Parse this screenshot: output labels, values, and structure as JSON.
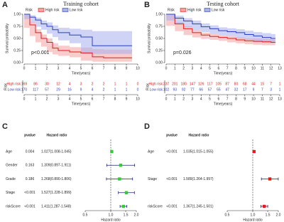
{
  "chart_data": [
    {
      "type": "survival",
      "panel": "A",
      "title": "Training cohort",
      "xlabel": "Time(years)",
      "ylabel": "Survival probability",
      "legend_title": "Risk",
      "annotation": "p<0.001",
      "risk_table_label": "Risk",
      "xlim": [
        0,
        10
      ],
      "xticks": [
        0,
        1,
        2,
        3,
        4,
        5,
        6,
        7,
        8,
        9,
        10
      ],
      "ylim": [
        0,
        1
      ],
      "yticks": [
        {
          "value": 0,
          "label": "0.00"
        },
        {
          "value": 0.25,
          "label": "0.25"
        },
        {
          "value": 0.5,
          "label": "0.50"
        },
        {
          "value": 0.75,
          "label": "0.75"
        },
        {
          "value": 1,
          "label": "1.00"
        }
      ],
      "x": [
        0,
        0.5,
        1,
        1.5,
        2,
        2.5,
        3,
        4,
        5,
        6,
        7,
        8,
        9,
        9.5
      ],
      "series": [
        {
          "name": "High risk",
          "color": "#e41a1c",
          "band_color": "#f4a0a0",
          "values": [
            1,
            0.78,
            0.62,
            0.5,
            0.42,
            0.3,
            0.25,
            0.22,
            0.2,
            0.12,
            0.1,
            0.1,
            0.1,
            0.1
          ],
          "lower": [
            1,
            0.72,
            0.55,
            0.42,
            0.33,
            0.22,
            0.17,
            0.14,
            0.11,
            0.04,
            0.02,
            0.02,
            0.02,
            0.02
          ],
          "upper": [
            1,
            0.84,
            0.69,
            0.58,
            0.5,
            0.4,
            0.35,
            0.32,
            0.31,
            0.28,
            0.27,
            0.27,
            0.27,
            0.27
          ],
          "at_risk": [
            169,
            86,
            30,
            12,
            4,
            3,
            2,
            2,
            1,
            1,
            0
          ]
        },
        {
          "name": "Low risk",
          "color": "#2b3fc4",
          "band_color": "#a8b0f0",
          "values": [
            1,
            0.94,
            0.88,
            0.8,
            0.75,
            0.68,
            0.62,
            0.57,
            0.53,
            0.35,
            0.35,
            0.35,
            0.35,
            0.35
          ],
          "lower": [
            1,
            0.9,
            0.83,
            0.74,
            0.68,
            0.6,
            0.53,
            0.46,
            0.4,
            0.18,
            0.18,
            0.18,
            0.18,
            0.18
          ],
          "upper": [
            1,
            0.98,
            0.93,
            0.87,
            0.83,
            0.77,
            0.72,
            0.7,
            0.68,
            0.65,
            0.65,
            0.65,
            0.65,
            0.65
          ],
          "at_risk": [
            170,
            117,
            57,
            29,
            16,
            9,
            4,
            2,
            1,
            1,
            0
          ]
        }
      ]
    },
    {
      "type": "survival",
      "panel": "B",
      "title": "Testing cohort",
      "xlabel": "Time(years)",
      "ylabel": "Survival probability",
      "legend_title": "Risk",
      "annotation": "p=0.026",
      "risk_table_label": "Risk",
      "xlim": [
        0,
        13
      ],
      "xticks": [
        0,
        1,
        2,
        3,
        4,
        5,
        6,
        7,
        8,
        9,
        10,
        11,
        12,
        13
      ],
      "ylim": [
        0,
        1
      ],
      "yticks": [
        {
          "value": 0,
          "label": "0.00"
        },
        {
          "value": 0.25,
          "label": "0.25"
        },
        {
          "value": 0.5,
          "label": "0.50"
        },
        {
          "value": 0.75,
          "label": "0.75"
        },
        {
          "value": 1,
          "label": "1.00"
        }
      ],
      "x": [
        0,
        1,
        2,
        3,
        4,
        5,
        6,
        7,
        8,
        9,
        10,
        11,
        12,
        12.5
      ],
      "series": [
        {
          "name": "High risk",
          "color": "#e41a1c",
          "band_color": "#f4a0a0",
          "values": [
            1,
            0.8,
            0.7,
            0.62,
            0.57,
            0.54,
            0.52,
            0.5,
            0.47,
            0.45,
            0.44,
            0.43,
            0.42,
            0.42
          ],
          "lower": [
            1,
            0.76,
            0.65,
            0.57,
            0.52,
            0.49,
            0.47,
            0.45,
            0.42,
            0.4,
            0.38,
            0.37,
            0.36,
            0.36
          ],
          "upper": [
            1,
            0.84,
            0.75,
            0.67,
            0.62,
            0.59,
            0.57,
            0.55,
            0.52,
            0.5,
            0.5,
            0.49,
            0.48,
            0.48
          ],
          "at_risk": [
            237,
            201,
            180,
            147,
            126,
            117,
            105,
            87,
            80,
            68,
            44,
            15,
            7,
            1
          ]
        },
        {
          "name": "Low risk",
          "color": "#2b3fc4",
          "band_color": "#a8b0f0",
          "values": [
            1,
            0.92,
            0.86,
            0.8,
            0.74,
            0.7,
            0.66,
            0.64,
            0.62,
            0.58,
            0.55,
            0.52,
            0.5,
            0.5
          ],
          "lower": [
            1,
            0.87,
            0.8,
            0.73,
            0.67,
            0.63,
            0.59,
            0.57,
            0.55,
            0.5,
            0.47,
            0.43,
            0.41,
            0.41
          ],
          "upper": [
            1,
            0.97,
            0.92,
            0.87,
            0.81,
            0.77,
            0.73,
            0.71,
            0.69,
            0.66,
            0.63,
            0.61,
            0.59,
            0.59
          ],
          "at_risk": [
            102,
            93,
            92,
            77,
            66,
            57,
            55,
            47,
            32,
            17,
            9,
            7,
            3,
            1
          ]
        }
      ]
    },
    {
      "type": "forest",
      "panel": "C",
      "headers": [
        "pvalue",
        "Hazard ratio"
      ],
      "xlabel": "Hazard ratio",
      "log_x": true,
      "reference": 1,
      "color": "#33cc33",
      "xlim": [
        0.5,
        2
      ],
      "xticks": [
        0.5,
        {
          "value": 1,
          "label": "1.0"
        },
        1.5,
        {
          "value": 2,
          "label": "2.0"
        }
      ],
      "rows": [
        {
          "name": "Age",
          "pvalue": "0.004",
          "hr_label": "1.027(1.008-1.045)",
          "hr": 1.027,
          "lower": 1.008,
          "upper": 1.045
        },
        {
          "name": "Gender",
          "pvalue": "0.163",
          "hr_label": "1.309(0.897-1.911)",
          "hr": 1.309,
          "lower": 0.897,
          "upper": 1.911
        },
        {
          "name": "Grade",
          "pvalue": "0.186",
          "hr_label": "1.268(0.890-1.806)",
          "hr": 1.268,
          "lower": 0.89,
          "upper": 1.806
        },
        {
          "name": "Stage",
          "pvalue": "<0.001",
          "hr_label": "1.527(1.228-1.899)",
          "hr": 1.527,
          "lower": 1.228,
          "upper": 1.899
        },
        {
          "name": "riskScore",
          "pvalue": "<0.001",
          "hr_label": "1.411(1.287-1.548)",
          "hr": 1.411,
          "lower": 1.287,
          "upper": 1.548
        }
      ]
    },
    {
      "type": "forest",
      "panel": "D",
      "headers": [
        "pvalue",
        "Hazard ratio"
      ],
      "xlabel": "Hazard ratio",
      "log_x": true,
      "reference": 1,
      "color": "#e41a1c",
      "xlim": [
        0.5,
        2
      ],
      "xticks": [
        0.5,
        {
          "value": 1,
          "label": "1.0"
        },
        1.5,
        {
          "value": 2,
          "label": "2.0"
        }
      ],
      "rows": [
        {
          "name": "Age",
          "pvalue": "<0.001",
          "hr_label": "1.035(1.015-1.055)",
          "hr": 1.035,
          "lower": 1.015,
          "upper": 1.055
        },
        {
          "name": "Stage",
          "pvalue": "<0.001",
          "hr_label": "1.589(1.264-1.997)",
          "hr": 1.589,
          "lower": 1.264,
          "upper": 1.997
        },
        {
          "name": "riskScore",
          "pvalue": "<0.001",
          "hr_label": "1.367(1.245-1.501)",
          "hr": 1.367,
          "lower": 1.245,
          "upper": 1.501
        }
      ]
    }
  ]
}
